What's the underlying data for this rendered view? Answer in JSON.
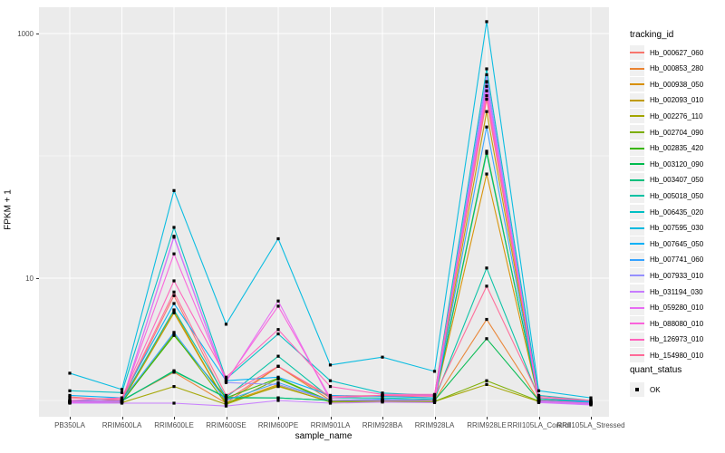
{
  "figure": {
    "x_axis_title": "sample_name",
    "y_axis_title": "FPKM + 1",
    "legend_tracking_title": "tracking_id",
    "legend_quant_title": "quant_status",
    "quant_status_items": [
      "OK"
    ],
    "y_tick_labels": [
      "1000",
      "10"
    ],
    "colors": {
      "panel_bg": "#EBEBEB",
      "grid": "#FFFFFF",
      "point": "#000000",
      "tick_text": "#4D4D4D"
    }
  },
  "chart_data": {
    "type": "line",
    "title": "",
    "xlabel": "sample_name",
    "ylabel": "FPKM + 1",
    "y_scale": "log10",
    "y_major_breaks": [
      10,
      1000
    ],
    "y_minor_breaks": [
      1,
      100
    ],
    "point_shape": "filled-square",
    "legend_position": "right",
    "x_categories": [
      "PB350LA",
      "RRIM600LA",
      "RRIM600LE",
      "RRIM600SE",
      "RRIM600PE",
      "RRIM901LA",
      "RRIM928BA",
      "RRIM928LA",
      "RRIM928LE",
      "RRII105LA_Control",
      "RRII105LA_Stressed"
    ],
    "series": [
      {
        "name": "Hb_000627_060",
        "color": "#F8766D",
        "values": [
          1.07,
          1.0,
          7.2,
          1.0,
          1.9,
          1.05,
          1.1,
          1.05,
          290,
          1.0,
          0.95
        ]
      },
      {
        "name": "Hb_000853_280",
        "color": "#EA8331",
        "values": [
          1.0,
          1.0,
          1.7,
          0.95,
          1.9,
          1.0,
          1.0,
          1.0,
          4.6,
          1.0,
          0.95
        ]
      },
      {
        "name": "Hb_000938_050",
        "color": "#D89000",
        "values": [
          0.98,
          0.98,
          5.4,
          0.95,
          1.35,
          1.0,
          1.0,
          1.0,
          71,
          1.0,
          0.95
        ]
      },
      {
        "name": "Hb_002093_010",
        "color": "#C09B00",
        "values": [
          0.97,
          0.97,
          5.2,
          0.95,
          1.3,
          0.98,
          1.0,
          1.0,
          230,
          1.0,
          0.95
        ]
      },
      {
        "name": "Hb_002276_110",
        "color": "#A3A500",
        "values": [
          0.96,
          0.96,
          1.3,
          0.93,
          1.32,
          0.97,
          0.98,
          0.98,
          1.35,
          0.98,
          0.93
        ]
      },
      {
        "name": "Hb_002704_090",
        "color": "#7CAE00",
        "values": [
          0.96,
          0.97,
          3.5,
          0.94,
          1.5,
          0.98,
          0.99,
          0.98,
          1.45,
          0.99,
          0.94
        ]
      },
      {
        "name": "Hb_002835_420",
        "color": "#39B600",
        "values": [
          0.97,
          0.98,
          3.4,
          1.05,
          1.52,
          0.99,
          1.0,
          1.0,
          109,
          1.0,
          0.95
        ]
      },
      {
        "name": "Hb_003120_090",
        "color": "#00BB4E",
        "values": [
          0.98,
          0.99,
          1.75,
          1.05,
          1.05,
          1.0,
          1.0,
          1.0,
          3.2,
          1.0,
          0.96
        ]
      },
      {
        "name": "Hb_003407_050",
        "color": "#00BF7D",
        "values": [
          0.98,
          1.0,
          1.73,
          1.06,
          1.05,
          1.0,
          1.02,
          1.0,
          105,
          1.02,
          0.97
        ]
      },
      {
        "name": "Hb_005018_050",
        "color": "#00C1A3",
        "values": [
          1.0,
          1.0,
          5.5,
          1.06,
          2.3,
          1.05,
          1.05,
          1.02,
          12.1,
          1.05,
          0.97
        ]
      },
      {
        "name": "Hb_006435_020",
        "color": "#00BFC4",
        "values": [
          1.2,
          1.16,
          26,
          1.5,
          3.5,
          1.45,
          1.15,
          1.1,
          514,
          1.1,
          1.0
        ]
      },
      {
        "name": "Hb_007595_030",
        "color": "#00BAE0",
        "values": [
          1.67,
          1.23,
          52,
          4.2,
          21,
          1.95,
          2.26,
          1.73,
          1250,
          1.2,
          1.05
        ]
      },
      {
        "name": "Hb_007645_050",
        "color": "#00B0F6",
        "values": [
          1.1,
          1.05,
          6.2,
          1.45,
          1.55,
          1.1,
          1.08,
          1.05,
          405,
          1.05,
          0.98
        ]
      },
      {
        "name": "Hb_007741_060",
        "color": "#35A2FF",
        "values": [
          1.0,
          1.0,
          3.6,
          1.0,
          1.4,
          1.0,
          1.02,
          1.0,
          172,
          1.0,
          0.96
        ]
      },
      {
        "name": "Hb_007933_010",
        "color": "#9590FF",
        "values": [
          0.97,
          0.98,
          21.6,
          1.4,
          1.35,
          1.0,
          1.0,
          1.0,
          460,
          0.98,
          0.94
        ]
      },
      {
        "name": "Hb_031194_030",
        "color": "#C77CFF",
        "values": [
          0.95,
          0.95,
          0.95,
          0.9,
          1.0,
          0.95,
          0.97,
          0.96,
          400,
          0.96,
          0.92
        ]
      },
      {
        "name": "Hb_059280_010",
        "color": "#E76BF3",
        "values": [
          0.96,
          0.97,
          22,
          1.42,
          6.5,
          1.0,
          1.0,
          1.0,
          370,
          0.97,
          0.93
        ]
      },
      {
        "name": "Hb_088080_010",
        "color": "#FA62DB",
        "values": [
          0.98,
          1.0,
          15.8,
          1.45,
          5.9,
          1.05,
          1.1,
          1.1,
          340,
          1.0,
          0.95
        ]
      },
      {
        "name": "Hb_126973_010",
        "color": "#FF62BC",
        "values": [
          1.0,
          1.05,
          9.5,
          1.55,
          3.8,
          1.3,
          1.12,
          1.12,
          310,
          1.05,
          1.0
        ]
      },
      {
        "name": "Hb_154980_010",
        "color": "#FF6A98",
        "values": [
          1.05,
          1.02,
          7.7,
          1.1,
          1.9,
          1.08,
          1.1,
          1.08,
          8.6,
          1.08,
          1.0
        ]
      }
    ]
  }
}
